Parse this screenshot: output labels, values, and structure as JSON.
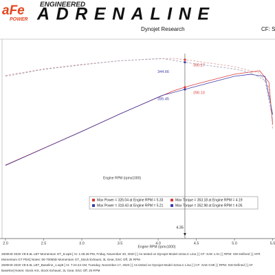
{
  "header": {
    "brand": "aFe",
    "brand_sub": "POWER",
    "tagline_top": "ENGINEERED",
    "tagline": "ADRENALINE",
    "source": "Dynojet Research",
    "cf": "CF: S"
  },
  "chart_data": {
    "type": "line",
    "x_label": "Engine RPM (rpmx1000)",
    "xlim": [
      1.95,
      5.53
    ],
    "xticks": [
      {
        "value": 2,
        "label": "2.0"
      },
      2.5,
      {
        "value": 3,
        "label": "3.0"
      },
      3.5,
      {
        "value": 4,
        "label": "4.0"
      },
      4.5,
      {
        "value": 5,
        "label": "5.0"
      },
      5.5
    ],
    "ylim": [
      -40,
      395
    ],
    "series": [
      {
        "color": "#d83a3a",
        "dashed": false,
        "x": [
          2.0,
          2.5,
          3.0,
          3.5,
          4.0,
          4.19,
          4.35,
          4.5,
          5.0,
          5.33,
          5.45,
          5.5
        ],
        "values": [
          120.3,
          157,
          194,
          232,
          268,
          281.8,
          290.1,
          297.3,
          318.7,
          326.04,
          301,
          209
        ]
      },
      {
        "color": "#3b3ba6",
        "dashed": false,
        "x": [
          2.0,
          2.5,
          3.0,
          3.5,
          4.05,
          4.35,
          4.5,
          5.0,
          5.21,
          5.4,
          5.5
        ],
        "values": [
          119.6,
          156.6,
          193.6,
          231.9,
          272.2,
          285.45,
          292.2,
          314.2,
          318.43,
          313.6,
          230.4
        ]
      },
      {
        "color": "#dd9a9a",
        "dashed": true,
        "x": [
          2.0,
          2.5,
          3.0,
          3.5,
          4.0,
          4.19,
          4.35,
          4.5,
          5.0,
          5.33,
          5.45,
          5.5
        ],
        "values": [
          316,
          330,
          340,
          348,
          352,
          353.18,
          350.27,
          347,
          335,
          321,
          290,
          200
        ]
      },
      {
        "color": "#9a9ab0",
        "dashed": true,
        "x": [
          2.0,
          2.5,
          3.0,
          3.5,
          4.05,
          4.35,
          4.5,
          5.0,
          5.21,
          5.4,
          5.5
        ],
        "values": [
          314,
          329,
          339,
          348,
          352.98,
          344.66,
          341,
          330,
          322,
          305,
          220
        ]
      }
    ],
    "cursor": {
      "x": 4.35,
      "readouts": [
        {
          "value": 350.27,
          "color": "#d83a3a",
          "side": "right"
        },
        {
          "value": 344.66,
          "color": "#3b3ba6",
          "side": "left"
        },
        {
          "value": 290.1,
          "label": "290.10",
          "color": "#d83a3a",
          "side": "right"
        },
        {
          "value": 285.45,
          "color": "#3b3ba6",
          "side": "left"
        }
      ]
    },
    "stats": [
      {
        "color": "#d83a3a",
        "power": "Max Power = 326.04 at Engine RPM = 5.33",
        "torque": "Max Torque = 353.18 at Engine RPM = 4.19"
      },
      {
        "color": "#3b3ba6",
        "power": "Max Power = 318.43 at Engine RPM = 5.21",
        "torque": "Max Torque = 352.98 at Engine RPM = 4.05"
      }
    ]
  },
  "footer": [
    "2500HD 2020 V8-6.6L LBT Momentum GT_8.wp8 [ At: 1:35:28 PM, Friday, November 20, 2020 ] [ As tested on Dynojet Model 424xLC Lina ] [ CF: SAE 1.01 ] [ RPM: SW Defined ] [ AFR",
    "Momentum GT PDS] Notes: 50-70055D Momentum GT_Stock Exhaust, 3L Gear, ESC Off, 2k RPM",
    "2500HD 2020 V8-6.6L LBT_Baseline_1.wp8 [ At: 7:24:44 AM, Tuesday, November 17, 2020 ] [ As tested on Dynojet Model 424xLC Lina ] [ CF: SAE 0.99 ] [ RPM: SW Defined ] [ AF",
    "Baseline] Notes: Stock AIS, Stock Exhaust, 3L Gear, ESC Off, 2k RPM"
  ]
}
